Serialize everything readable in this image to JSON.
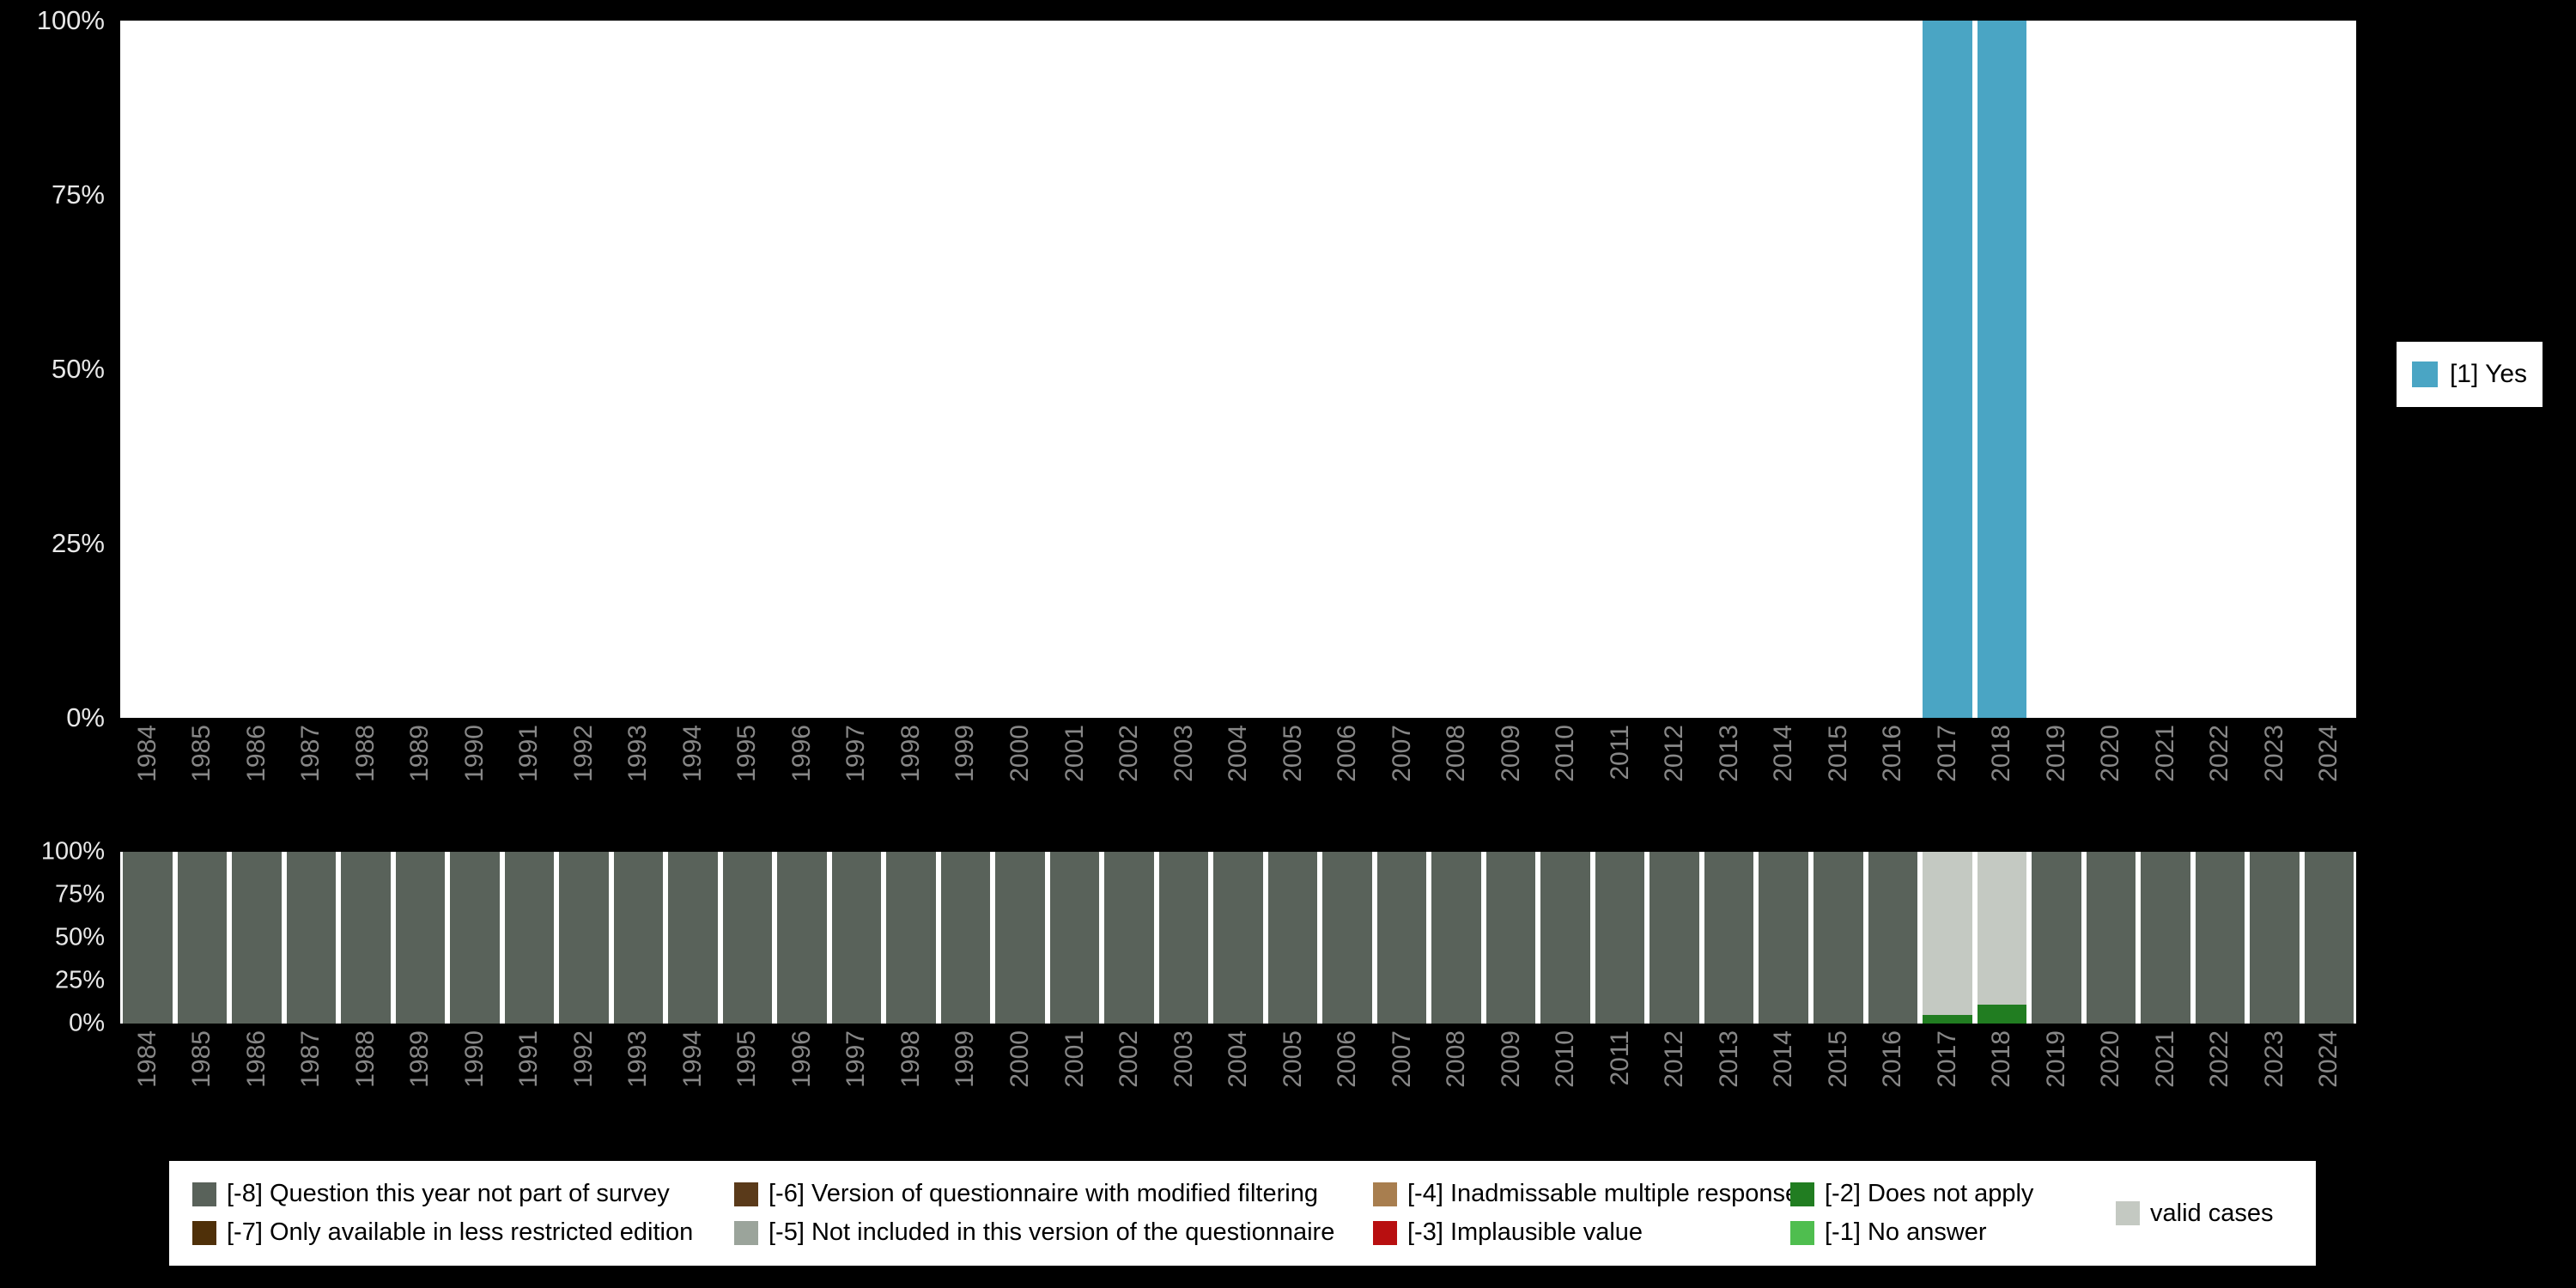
{
  "colors": {
    "page_background": "#000000",
    "plot_background": "#ffffff",
    "y_tick_color": "#e8e8e8",
    "x_tick_color": "#878787"
  },
  "chart_data": [
    {
      "type": "bar",
      "title": "",
      "xlabel": "",
      "ylabel": "",
      "stacked": true,
      "ylim": [
        0,
        100
      ],
      "unit": "%",
      "grid": false,
      "legend_position": "right",
      "categories": [
        "1984",
        "1985",
        "1986",
        "1987",
        "1988",
        "1989",
        "1990",
        "1991",
        "1992",
        "1993",
        "1994",
        "1995",
        "1996",
        "1997",
        "1998",
        "1999",
        "2000",
        "2001",
        "2002",
        "2003",
        "2004",
        "2005",
        "2006",
        "2007",
        "2008",
        "2009",
        "2010",
        "2011",
        "2012",
        "2013",
        "2014",
        "2015",
        "2016",
        "2017",
        "2018",
        "2019",
        "2020",
        "2021",
        "2022",
        "2023",
        "2024"
      ],
      "yticks": [
        {
          "label": "100%",
          "value": 100
        },
        {
          "label": "75%",
          "value": 75
        },
        {
          "label": "50%",
          "value": 50
        },
        {
          "label": "25%",
          "value": 25
        },
        {
          "label": "0%",
          "value": 0
        }
      ],
      "series": [
        {
          "name": "[1] Yes",
          "color": "#4aa5c4",
          "values": [
            0,
            0,
            0,
            0,
            0,
            0,
            0,
            0,
            0,
            0,
            0,
            0,
            0,
            0,
            0,
            0,
            0,
            0,
            0,
            0,
            0,
            0,
            0,
            0,
            0,
            0,
            0,
            0,
            0,
            0,
            0,
            0,
            0,
            100,
            100,
            0,
            0,
            0,
            0,
            0,
            0
          ]
        }
      ],
      "legend": [
        {
          "label": "[1] Yes",
          "color": "#4aa5c4"
        }
      ]
    },
    {
      "type": "bar",
      "title": "",
      "xlabel": "",
      "ylabel": "",
      "stacked": true,
      "ylim": [
        0,
        100
      ],
      "unit": "%",
      "grid": false,
      "legend_position": "bottom",
      "categories": [
        "1984",
        "1985",
        "1986",
        "1987",
        "1988",
        "1989",
        "1990",
        "1991",
        "1992",
        "1993",
        "1994",
        "1995",
        "1996",
        "1997",
        "1998",
        "1999",
        "2000",
        "2001",
        "2002",
        "2003",
        "2004",
        "2005",
        "2006",
        "2007",
        "2008",
        "2009",
        "2010",
        "2011",
        "2012",
        "2013",
        "2014",
        "2015",
        "2016",
        "2017",
        "2018",
        "2019",
        "2020",
        "2021",
        "2022",
        "2023",
        "2024"
      ],
      "yticks": [
        {
          "label": "100%",
          "value": 100
        },
        {
          "label": "75%",
          "value": 75
        },
        {
          "label": "50%",
          "value": 50
        },
        {
          "label": "25%",
          "value": 25
        },
        {
          "label": "0%",
          "value": 0
        }
      ],
      "series": [
        {
          "name": "[-2] Does not apply",
          "color": "#217d21",
          "values": [
            0,
            0,
            0,
            0,
            0,
            0,
            0,
            0,
            0,
            0,
            0,
            0,
            0,
            0,
            0,
            0,
            0,
            0,
            0,
            0,
            0,
            0,
            0,
            0,
            0,
            0,
            0,
            0,
            0,
            0,
            0,
            0,
            0,
            5,
            11,
            0,
            0,
            0,
            0,
            0,
            0
          ]
        },
        {
          "name": "valid cases",
          "color": "#c4c9c2",
          "values": [
            0,
            0,
            0,
            0,
            0,
            0,
            0,
            0,
            0,
            0,
            0,
            0,
            0,
            0,
            0,
            0,
            0,
            0,
            0,
            0,
            0,
            0,
            0,
            0,
            0,
            0,
            0,
            0,
            0,
            0,
            0,
            0,
            0,
            95,
            89,
            0,
            0,
            0,
            0,
            0,
            0
          ]
        },
        {
          "name": "[-8] Question this year not part of survey",
          "color": "#59625a",
          "values": [
            100,
            100,
            100,
            100,
            100,
            100,
            100,
            100,
            100,
            100,
            100,
            100,
            100,
            100,
            100,
            100,
            100,
            100,
            100,
            100,
            100,
            100,
            100,
            100,
            100,
            100,
            100,
            100,
            100,
            100,
            100,
            100,
            100,
            0,
            0,
            100,
            100,
            100,
            100,
            100,
            100
          ]
        }
      ],
      "legend_columns": [
        {
          "items": [
            {
              "label": "[-8] Question this year not part of survey",
              "color": "#59625a"
            },
            {
              "label": "[-7] Only available in less restricted edition",
              "color": "#4f3009"
            }
          ]
        },
        {
          "items": [
            {
              "label": "[-6] Version of questionnaire with modified filtering",
              "color": "#5a3a1a"
            },
            {
              "label": "[-5] Not included in this version of the questionnaire",
              "color": "#9ba49b"
            }
          ]
        },
        {
          "items": [
            {
              "label": "[-4] Inadmissable multiple response",
              "color": "#a87e4f"
            },
            {
              "label": "[-3] Implausible value",
              "color": "#b80f10"
            }
          ]
        },
        {
          "items": [
            {
              "label": "[-2] Does not apply",
              "color": "#217d21"
            },
            {
              "label": "[-1] No answer",
              "color": "#4fbe4f"
            }
          ]
        },
        {
          "items": [
            {
              "label": "valid cases",
              "color": "#c4c9c2"
            }
          ]
        }
      ]
    }
  ]
}
